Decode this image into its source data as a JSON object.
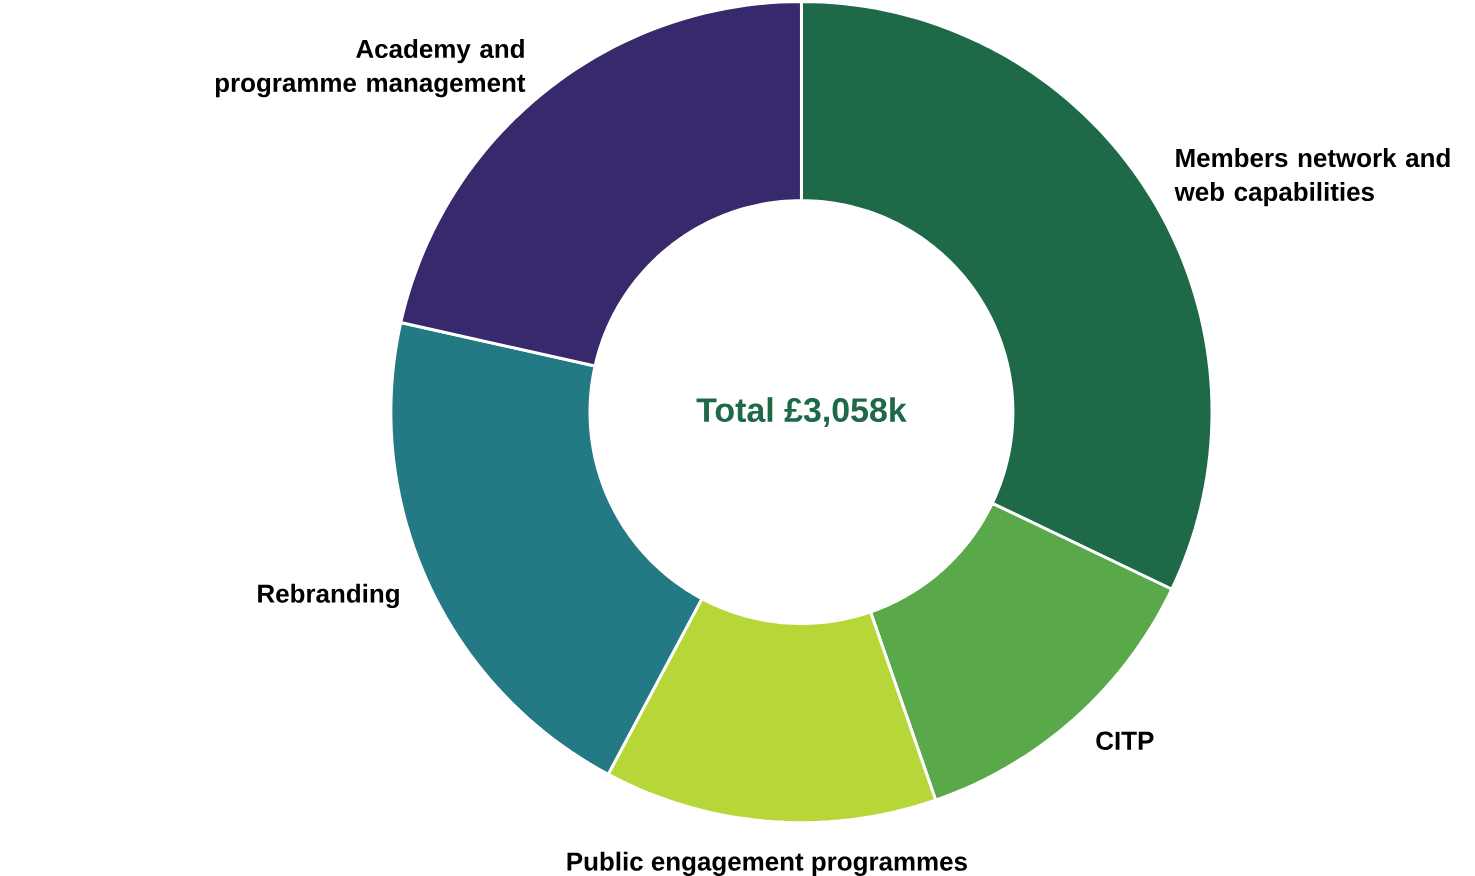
{
  "chart_data": {
    "type": "donut",
    "categories": [
      "Members network and web capabilities",
      "CITP",
      "Public engagement programmes",
      "Rebranding",
      "Academy and programme management"
    ],
    "values": [
      32.1,
      12.6,
      13.1,
      20.7,
      21.5
    ],
    "colors": [
      "#1e6948",
      "#59a84a",
      "#b7d637",
      "#237a84",
      "#37296b"
    ],
    "annotations": [
      "Total  £3,058k"
    ]
  }
}
